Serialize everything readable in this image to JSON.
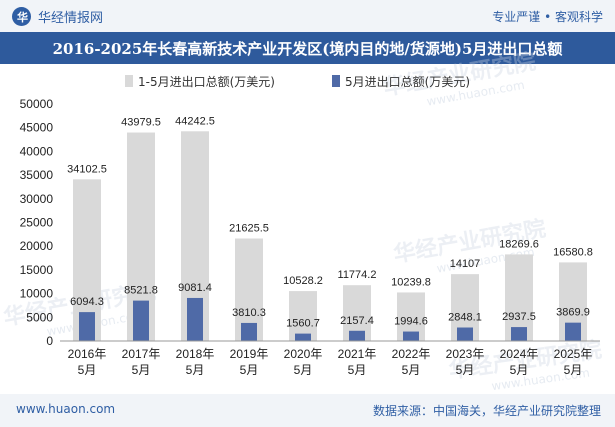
{
  "header": {
    "brand": "华经情报网",
    "slogan": "专业严谨 • 客观科学"
  },
  "title": "2016-2025年长春高新技术产业开发区(境内目的地/货源地)5月进出口总额",
  "footer": {
    "site": "www.huaon.com",
    "source": "数据来源：中国海关，华经产业研究院整理"
  },
  "watermark": {
    "text": "华经产业研究院",
    "url": "www.huaon.com"
  },
  "colors": {
    "series1": "#d9d9d9",
    "series2": "#4f6aa7",
    "header_bg": "#2e5a9c"
  },
  "chart_data": {
    "type": "bar",
    "categories": [
      [
        "2016年",
        "5月"
      ],
      [
        "2017年",
        "5月"
      ],
      [
        "2018年",
        "5月"
      ],
      [
        "2019年",
        "5月"
      ],
      [
        "2020年",
        "5月"
      ],
      [
        "2021年",
        "5月"
      ],
      [
        "2022年",
        "5月"
      ],
      [
        "2023年",
        "5月"
      ],
      [
        "2024年",
        "5月"
      ],
      [
        "2025年",
        "5月"
      ]
    ],
    "series": [
      {
        "name": "1-5月进出口总额(万美元)",
        "values": [
          34102.5,
          43979.5,
          44242.5,
          21625.5,
          10528.2,
          11774.2,
          10239.8,
          14107,
          18269.6,
          16580.8
        ]
      },
      {
        "name": "5月进出口总额(万美元)",
        "values": [
          6094.3,
          8521.8,
          9081.4,
          3810.3,
          1560.7,
          2157.4,
          1994.6,
          2848.1,
          2937.5,
          3869.9
        ]
      }
    ],
    "ylim": [
      0,
      50000
    ],
    "yticks": [
      0,
      5000,
      10000,
      15000,
      20000,
      25000,
      30000,
      35000,
      40000,
      45000,
      50000
    ],
    "grid": false,
    "legend": "top"
  }
}
